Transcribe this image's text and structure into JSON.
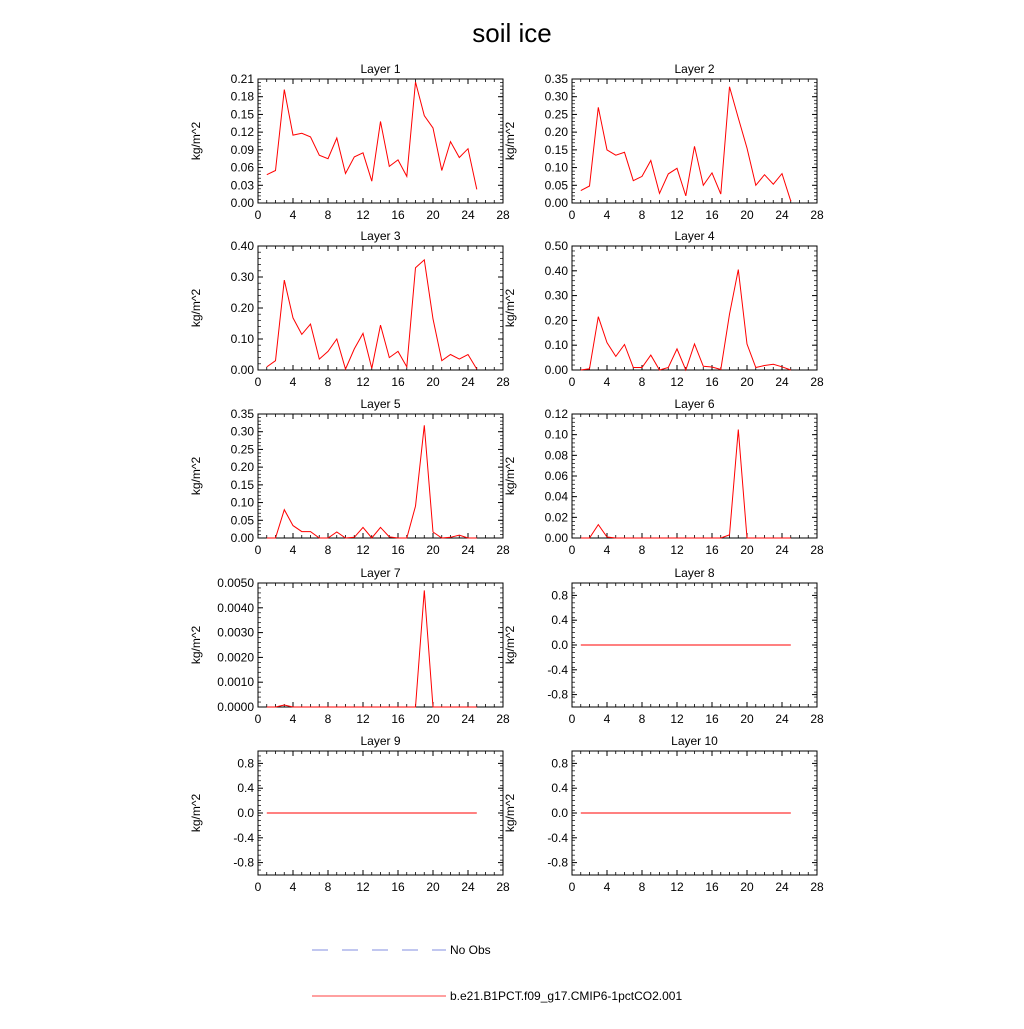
{
  "title": "soil ice",
  "legend": {
    "items": [
      {
        "label": "No Obs",
        "style": "dashed",
        "color": "#5b6bd6"
      },
      {
        "label": "b.e21.B1PCT.f09_g17.CMIP6-1pctCO2.001",
        "style": "solid",
        "color": "#ff0000"
      }
    ]
  },
  "chart_data": [
    {
      "type": "line",
      "title": "Layer 1",
      "ylabel": "kg/m^2",
      "xlim": [
        0,
        28
      ],
      "xticks": [
        "0",
        "4",
        "8",
        "12",
        "16",
        "20",
        "24",
        "28"
      ],
      "ylim": [
        0,
        0.21
      ],
      "yticks": [
        "0.00",
        "0.03",
        "0.06",
        "0.09",
        "0.12",
        "0.15",
        "0.18",
        "0.21"
      ],
      "x": [
        1,
        2,
        3,
        4,
        5,
        6,
        7,
        8,
        9,
        10,
        11,
        12,
        13,
        14,
        15,
        16,
        17,
        18,
        19,
        20,
        21,
        22,
        23,
        24,
        25
      ],
      "series": [
        {
          "color": "#ff0000",
          "values": [
            0.048,
            0.055,
            0.192,
            0.115,
            0.118,
            0.112,
            0.081,
            0.075,
            0.11,
            0.05,
            0.078,
            0.085,
            0.037,
            0.138,
            0.062,
            0.073,
            0.045,
            0.205,
            0.148,
            0.127,
            0.055,
            0.104,
            0.077,
            0.092,
            0.023
          ]
        }
      ]
    },
    {
      "type": "line",
      "title": "Layer 2",
      "ylabel": "kg/m^2",
      "xlim": [
        0,
        28
      ],
      "xticks": [
        "0",
        "4",
        "8",
        "12",
        "16",
        "20",
        "24",
        "28"
      ],
      "ylim": [
        0,
        0.35
      ],
      "yticks": [
        "0.00",
        "0.05",
        "0.10",
        "0.15",
        "0.20",
        "0.25",
        "0.30",
        "0.35"
      ],
      "x": [
        1,
        2,
        3,
        4,
        5,
        6,
        7,
        8,
        9,
        10,
        11,
        12,
        13,
        14,
        15,
        16,
        17,
        18,
        19,
        20,
        21,
        22,
        23,
        24,
        25
      ],
      "series": [
        {
          "color": "#ff0000",
          "values": [
            0.035,
            0.048,
            0.27,
            0.15,
            0.135,
            0.143,
            0.063,
            0.075,
            0.12,
            0.027,
            0.082,
            0.098,
            0.02,
            0.16,
            0.05,
            0.085,
            0.025,
            0.328,
            0.24,
            0.155,
            0.05,
            0.08,
            0.053,
            0.083,
            0.005
          ]
        }
      ]
    },
    {
      "type": "line",
      "title": "Layer 3",
      "ylabel": "kg/m^2",
      "xlim": [
        0,
        28
      ],
      "xticks": [
        "0",
        "4",
        "8",
        "12",
        "16",
        "20",
        "24",
        "28"
      ],
      "ylim": [
        0,
        0.4
      ],
      "yticks": [
        "0.00",
        "0.10",
        "0.20",
        "0.30",
        "0.40"
      ],
      "x": [
        1,
        2,
        3,
        4,
        5,
        6,
        7,
        8,
        9,
        10,
        11,
        12,
        13,
        14,
        15,
        16,
        17,
        18,
        19,
        20,
        21,
        22,
        23,
        24,
        25
      ],
      "series": [
        {
          "color": "#ff0000",
          "values": [
            0.01,
            0.03,
            0.29,
            0.168,
            0.115,
            0.148,
            0.035,
            0.06,
            0.1,
            0.003,
            0.068,
            0.118,
            0.005,
            0.145,
            0.04,
            0.06,
            0.01,
            0.33,
            0.355,
            0.165,
            0.03,
            0.05,
            0.035,
            0.05,
            0.003
          ]
        }
      ]
    },
    {
      "type": "line",
      "title": "Layer 4",
      "ylabel": "kg/m^2",
      "xlim": [
        0,
        28
      ],
      "xticks": [
        "0",
        "4",
        "8",
        "12",
        "16",
        "20",
        "24",
        "28"
      ],
      "ylim": [
        0,
        0.5
      ],
      "yticks": [
        "0.00",
        "0.10",
        "0.20",
        "0.30",
        "0.40",
        "0.50"
      ],
      "x": [
        1,
        2,
        3,
        4,
        5,
        6,
        7,
        8,
        9,
        10,
        11,
        12,
        13,
        14,
        15,
        16,
        17,
        18,
        19,
        20,
        21,
        22,
        23,
        24,
        25
      ],
      "series": [
        {
          "color": "#ff0000",
          "values": [
            0.0,
            0.005,
            0.215,
            0.11,
            0.055,
            0.103,
            0.01,
            0.01,
            0.06,
            0.0,
            0.01,
            0.085,
            0.0,
            0.105,
            0.015,
            0.012,
            0.002,
            0.225,
            0.405,
            0.105,
            0.01,
            0.018,
            0.023,
            0.013,
            0.0
          ]
        }
      ]
    },
    {
      "type": "line",
      "title": "Layer 5",
      "ylabel": "kg/m^2",
      "xlim": [
        0,
        28
      ],
      "xticks": [
        "0",
        "4",
        "8",
        "12",
        "16",
        "20",
        "24",
        "28"
      ],
      "ylim": [
        0,
        0.35
      ],
      "yticks": [
        "0.00",
        "0.05",
        "0.10",
        "0.15",
        "0.20",
        "0.25",
        "0.30",
        "0.35"
      ],
      "x": [
        1,
        2,
        3,
        4,
        5,
        6,
        7,
        8,
        9,
        10,
        11,
        12,
        13,
        14,
        15,
        16,
        17,
        18,
        19,
        20,
        21,
        22,
        23,
        24,
        25
      ],
      "series": [
        {
          "color": "#ff0000",
          "values": [
            0.0,
            0.0,
            0.08,
            0.035,
            0.018,
            0.018,
            0.0,
            0.0,
            0.017,
            0.0,
            0.002,
            0.03,
            0.0,
            0.03,
            0.003,
            0.0,
            0.0,
            0.09,
            0.318,
            0.017,
            0.0,
            0.002,
            0.008,
            0.0,
            0.0
          ]
        }
      ]
    },
    {
      "type": "line",
      "title": "Layer 6",
      "ylabel": "kg/m^2",
      "xlim": [
        0,
        28
      ],
      "xticks": [
        "0",
        "4",
        "8",
        "12",
        "16",
        "20",
        "24",
        "28"
      ],
      "ylim": [
        0,
        0.12
      ],
      "yticks": [
        "0.00",
        "0.02",
        "0.04",
        "0.06",
        "0.08",
        "0.10",
        "0.12"
      ],
      "x": [
        1,
        2,
        3,
        4,
        5,
        6,
        7,
        8,
        9,
        10,
        11,
        12,
        13,
        14,
        15,
        16,
        17,
        18,
        19,
        20,
        21,
        22,
        23,
        24,
        25
      ],
      "series": [
        {
          "color": "#ff0000",
          "values": [
            0.0,
            0.0,
            0.013,
            0.001,
            0.0,
            0.0,
            0.0,
            0.0,
            0.0,
            0.0,
            0.0,
            0.0,
            0.0,
            0.0,
            0.0,
            0.0,
            0.0,
            0.003,
            0.105,
            0.0,
            0.0,
            0.0,
            0.0,
            0.0,
            0.0
          ]
        }
      ]
    },
    {
      "type": "line",
      "title": "Layer 7",
      "ylabel": "kg/m^2",
      "xlim": [
        0,
        28
      ],
      "xticks": [
        "0",
        "4",
        "8",
        "12",
        "16",
        "20",
        "24",
        "28"
      ],
      "ylim": [
        0,
        0.005
      ],
      "yticks": [
        "0.0000",
        "0.0010",
        "0.0020",
        "0.0030",
        "0.0040",
        "0.0050"
      ],
      "x": [
        1,
        2,
        3,
        4,
        5,
        6,
        7,
        8,
        9,
        10,
        11,
        12,
        13,
        14,
        15,
        16,
        17,
        18,
        19,
        20,
        21,
        22,
        23,
        24,
        25
      ],
      "series": [
        {
          "color": "#ff0000",
          "values": [
            0.0,
            0.0,
            8e-05,
            0.0,
            0.0,
            0.0,
            0.0,
            0.0,
            0.0,
            0.0,
            0.0,
            0.0,
            0.0,
            0.0,
            0.0,
            0.0,
            0.0,
            0.0,
            0.0047,
            0.0,
            0.0,
            0.0,
            0.0,
            0.0,
            0.0
          ]
        }
      ]
    },
    {
      "type": "line",
      "title": "Layer 8",
      "ylabel": "kg/m^2",
      "xlim": [
        0,
        28
      ],
      "xticks": [
        "0",
        "4",
        "8",
        "12",
        "16",
        "20",
        "24",
        "28"
      ],
      "ylim": [
        -1,
        1
      ],
      "yticks": [
        "-0.8",
        "-0.4",
        "0.0",
        "0.4",
        "0.8"
      ],
      "x": [
        1,
        2,
        3,
        4,
        5,
        6,
        7,
        8,
        9,
        10,
        11,
        12,
        13,
        14,
        15,
        16,
        17,
        18,
        19,
        20,
        21,
        22,
        23,
        24,
        25
      ],
      "series": [
        {
          "color": "#ff0000",
          "values": [
            0,
            0,
            0,
            0,
            0,
            0,
            0,
            0,
            0,
            0,
            0,
            0,
            0,
            0,
            0,
            0,
            0,
            0,
            0,
            0,
            0,
            0,
            0,
            0,
            0
          ]
        }
      ]
    },
    {
      "type": "line",
      "title": "Layer 9",
      "ylabel": "kg/m^2",
      "xlim": [
        0,
        28
      ],
      "xticks": [
        "0",
        "4",
        "8",
        "12",
        "16",
        "20",
        "24",
        "28"
      ],
      "ylim": [
        -1,
        1
      ],
      "yticks": [
        "-0.8",
        "-0.4",
        "0.0",
        "0.4",
        "0.8"
      ],
      "x": [
        1,
        2,
        3,
        4,
        5,
        6,
        7,
        8,
        9,
        10,
        11,
        12,
        13,
        14,
        15,
        16,
        17,
        18,
        19,
        20,
        21,
        22,
        23,
        24,
        25
      ],
      "series": [
        {
          "color": "#ff0000",
          "values": [
            0,
            0,
            0,
            0,
            0,
            0,
            0,
            0,
            0,
            0,
            0,
            0,
            0,
            0,
            0,
            0,
            0,
            0,
            0,
            0,
            0,
            0,
            0,
            0,
            0
          ]
        }
      ]
    },
    {
      "type": "line",
      "title": "Layer 10",
      "ylabel": "kg/m^2",
      "xlim": [
        0,
        28
      ],
      "xticks": [
        "0",
        "4",
        "8",
        "12",
        "16",
        "20",
        "24",
        "28"
      ],
      "ylim": [
        -1,
        1
      ],
      "yticks": [
        "-0.8",
        "-0.4",
        "0.0",
        "0.4",
        "0.8"
      ],
      "x": [
        1,
        2,
        3,
        4,
        5,
        6,
        7,
        8,
        9,
        10,
        11,
        12,
        13,
        14,
        15,
        16,
        17,
        18,
        19,
        20,
        21,
        22,
        23,
        24,
        25
      ],
      "series": [
        {
          "color": "#ff0000",
          "values": [
            0,
            0,
            0,
            0,
            0,
            0,
            0,
            0,
            0,
            0,
            0,
            0,
            0,
            0,
            0,
            0,
            0,
            0,
            0,
            0,
            0,
            0,
            0,
            0,
            0
          ]
        }
      ]
    }
  ]
}
